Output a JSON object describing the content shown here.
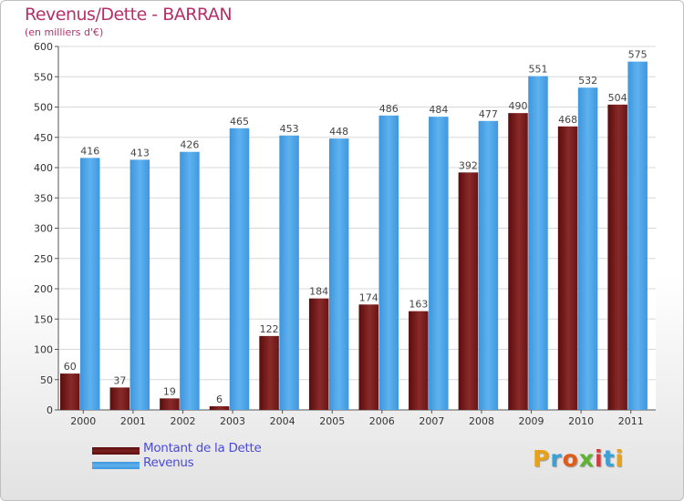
{
  "title": "Revenus/Dette - BARRAN",
  "subtitle": "(en milliers d'€)",
  "legend": {
    "dette_label": "Montant de la Dette",
    "revenus_label": "Revenus"
  },
  "logo": {
    "text": "Proxiti"
  },
  "colors": {
    "dette": "#7a1f1f",
    "revenus": "#4aa3e6",
    "legend_text": "#4a4ad8",
    "title": "#b5306a"
  },
  "chart_data": {
    "type": "bar",
    "categories": [
      "2000",
      "2001",
      "2002",
      "2003",
      "2004",
      "2005",
      "2006",
      "2007",
      "2008",
      "2009",
      "2010",
      "2011"
    ],
    "series": [
      {
        "name": "Montant de la Dette",
        "values": [
          60,
          37,
          19,
          6,
          122,
          184,
          174,
          163,
          392,
          490,
          468,
          504
        ]
      },
      {
        "name": "Revenus",
        "values": [
          416,
          413,
          426,
          465,
          453,
          448,
          486,
          484,
          477,
          551,
          532,
          575
        ]
      }
    ],
    "title": "Revenus/Dette - BARRAN",
    "ylabel": "(en milliers d'€)",
    "ylim": [
      0,
      600
    ],
    "yticks": [
      0,
      50,
      100,
      150,
      200,
      250,
      300,
      350,
      400,
      450,
      500,
      550,
      600
    ],
    "grid": true,
    "legend_position": "bottom-left"
  }
}
